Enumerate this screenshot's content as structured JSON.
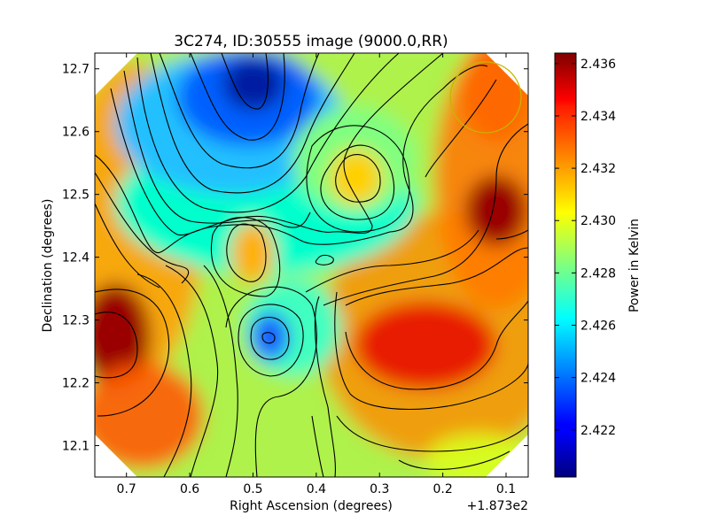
{
  "chart_data": {
    "type": "heatmap",
    "title": "3C274, ID:30555 image (9000.0,RR)",
    "xlabel": "Right Ascension (degrees)",
    "ylabel": "Declination (degrees)",
    "x_offset_label": "+1.873e2",
    "xlim": [
      0.75,
      0.065
    ],
    "ylim": [
      12.05,
      12.725
    ],
    "x_ticks": [
      0.7,
      0.6,
      0.5,
      0.4,
      0.3,
      0.2,
      0.1
    ],
    "x_tick_labels": [
      "0.7",
      "0.6",
      "0.5",
      "0.4",
      "0.3",
      "0.2",
      "0.1"
    ],
    "y_ticks": [
      12.1,
      12.2,
      12.3,
      12.4,
      12.5,
      12.6,
      12.7
    ],
    "y_tick_labels": [
      "12.1",
      "12.2",
      "12.3",
      "12.4",
      "12.5",
      "12.6",
      "12.7"
    ],
    "colorbar": {
      "label": "Power in Kelvin",
      "range": [
        2.4202,
        2.4364
      ],
      "ticks": [
        2.422,
        2.424,
        2.426,
        2.428,
        2.43,
        2.432,
        2.434,
        2.436
      ],
      "tick_labels": [
        "2.422",
        "2.424",
        "2.426",
        "2.428",
        "2.430",
        "2.432",
        "2.434",
        "2.436"
      ]
    },
    "colormap": "jet",
    "contours": true,
    "grid": false,
    "legend": "none",
    "features": [
      {
        "kind": "min",
        "x": 0.49,
        "y": 12.66,
        "value": 2.4205
      },
      {
        "kind": "min",
        "x": 0.47,
        "y": 12.27,
        "value": 2.4245
      },
      {
        "kind": "min",
        "x": 0.38,
        "y": 12.4,
        "value": 2.4268
      },
      {
        "kind": "max",
        "x": 0.72,
        "y": 12.27,
        "value": 2.4355
      },
      {
        "kind": "max",
        "x": 0.08,
        "y": 12.49,
        "value": 2.4362
      },
      {
        "kind": "max",
        "x": 0.25,
        "y": 12.27,
        "value": 2.4345
      },
      {
        "kind": "max",
        "x": 0.33,
        "y": 12.52,
        "value": 2.4318
      },
      {
        "kind": "max",
        "x": 0.49,
        "y": 12.41,
        "value": 2.4315
      }
    ],
    "beam_circle": {
      "x": 0.13,
      "y": 12.655,
      "radius": 0.055,
      "color": "#c8b400"
    }
  }
}
